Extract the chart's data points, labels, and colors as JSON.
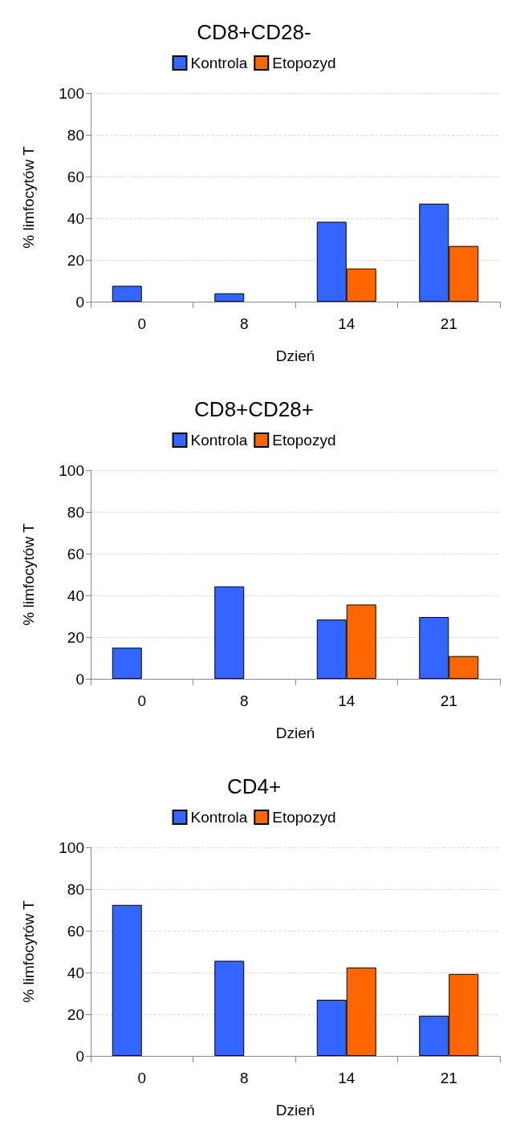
{
  "chart_data": [
    {
      "type": "bar",
      "title": "CD8+CD28-",
      "xlabel": "Dzień",
      "ylabel": "% limfocytów T",
      "categories": [
        "0",
        "8",
        "14",
        "21"
      ],
      "series": [
        {
          "name": "Kontrola",
          "color": "#3366ff",
          "values": [
            7.6,
            4.0,
            38.3,
            47.0
          ]
        },
        {
          "name": "Etopozyd",
          "color": "#ff6600",
          "values": [
            null,
            null,
            15.9,
            26.7
          ]
        }
      ],
      "ylim": [
        0,
        100
      ],
      "yticks": [
        0,
        20,
        40,
        60,
        80,
        100
      ],
      "grid": "y",
      "legend": "top"
    },
    {
      "type": "bar",
      "title": "CD8+CD28+",
      "xlabel": "Dzień",
      "ylabel": "% limfocytów T",
      "categories": [
        "0",
        "8",
        "14",
        "21"
      ],
      "series": [
        {
          "name": "Kontrola",
          "color": "#3366ff",
          "values": [
            14.9,
            44.3,
            28.4,
            29.6
          ]
        },
        {
          "name": "Etopozyd",
          "color": "#ff6600",
          "values": [
            null,
            null,
            35.6,
            10.9
          ]
        }
      ],
      "ylim": [
        0,
        100
      ],
      "yticks": [
        0,
        20,
        40,
        60,
        80,
        100
      ],
      "grid": "y",
      "legend": "top"
    },
    {
      "type": "bar",
      "title": "CD4+",
      "xlabel": "Dzień",
      "ylabel": "% limfocytów T",
      "categories": [
        "0",
        "8",
        "14",
        "21"
      ],
      "series": [
        {
          "name": "Kontrola",
          "color": "#3366ff",
          "values": [
            72.4,
            45.6,
            26.9,
            19.3
          ]
        },
        {
          "name": "Etopozyd",
          "color": "#ff6600",
          "values": [
            null,
            null,
            42.4,
            39.3
          ]
        }
      ],
      "ylim": [
        0,
        100
      ],
      "yticks": [
        0,
        20,
        40,
        60,
        80,
        100
      ],
      "grid": "y",
      "legend": "top"
    }
  ]
}
